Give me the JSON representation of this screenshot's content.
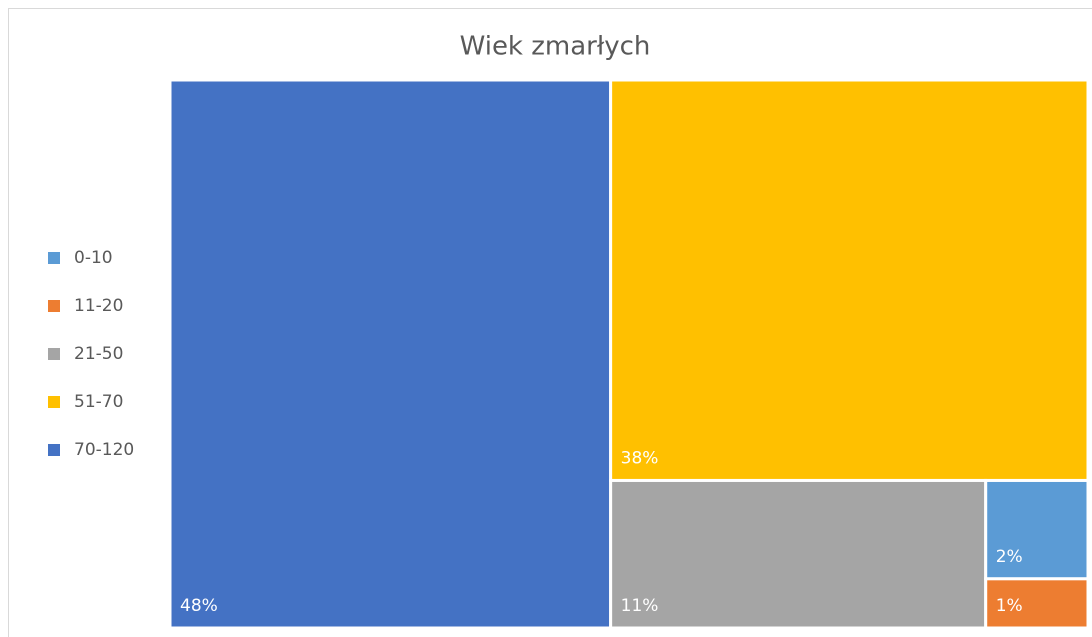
{
  "chart_data": {
    "type": "treemap",
    "title": "Wiek zmarłych",
    "categories": [
      "0-10",
      "11-20",
      "21-50",
      "51-70",
      "70-120"
    ],
    "values": [
      2,
      1,
      11,
      38,
      48
    ],
    "value_labels": [
      "2%",
      "1%",
      "11%",
      "38%",
      "48%"
    ],
    "colors": [
      "#5b9bd5",
      "#ed7d31",
      "#a5a5a5",
      "#ffc000",
      "#4472c4"
    ],
    "legend": "left"
  }
}
